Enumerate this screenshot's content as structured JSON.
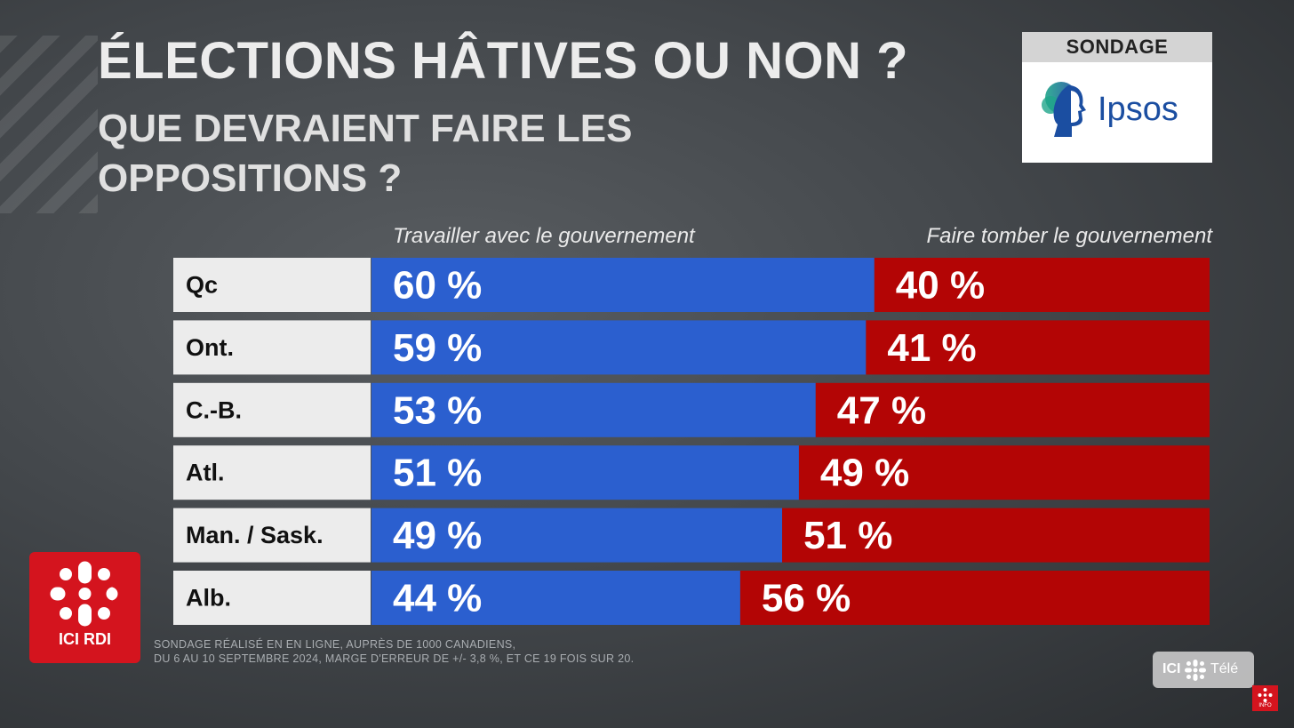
{
  "title": "ÉLECTIONS HÂTIVES OU NON ?",
  "subtitle": "QUE DEVRAIENT FAIRE LES OPPOSITIONS ?",
  "sondage_label": "SONDAGE",
  "pollster": "Ipsos",
  "footnote_line1": "Sondage réalisé en en ligne, auprès de 1000 Canadiens,",
  "footnote_line2": "du 6 au 10 septembre 2024, marge d'erreur de +/- 3,8 %, et ce 19 fois sur 20.",
  "network_logo": "ICI RDI",
  "bug_ici": "ICI",
  "bug_tele": "Télé",
  "info_badge": "INFO",
  "colors": {
    "blue": "#2b5fcf",
    "red": "#b30505",
    "label_bg": "#ececec"
  },
  "chart_data": {
    "type": "bar",
    "stacked": true,
    "orientation": "horizontal",
    "categories": [
      "Qc",
      "Ont.",
      "C.-B.",
      "Atl.",
      "Man. / Sask.",
      "Alb."
    ],
    "series": [
      {
        "name": "Travailler avec le gouvernement",
        "values": [
          60,
          59,
          53,
          51,
          49,
          44
        ],
        "labels": [
          "60 %",
          "59 %",
          "53 %",
          "51 %",
          "49 %",
          "44 %"
        ],
        "color": "#2b5fcf"
      },
      {
        "name": "Faire tomber le gouvernement",
        "values": [
          40,
          41,
          47,
          49,
          51,
          56
        ],
        "labels": [
          "40 %",
          "41 %",
          "47 %",
          "49 %",
          "51 %",
          "56 %"
        ],
        "color": "#b30505"
      }
    ],
    "unit": "%"
  }
}
